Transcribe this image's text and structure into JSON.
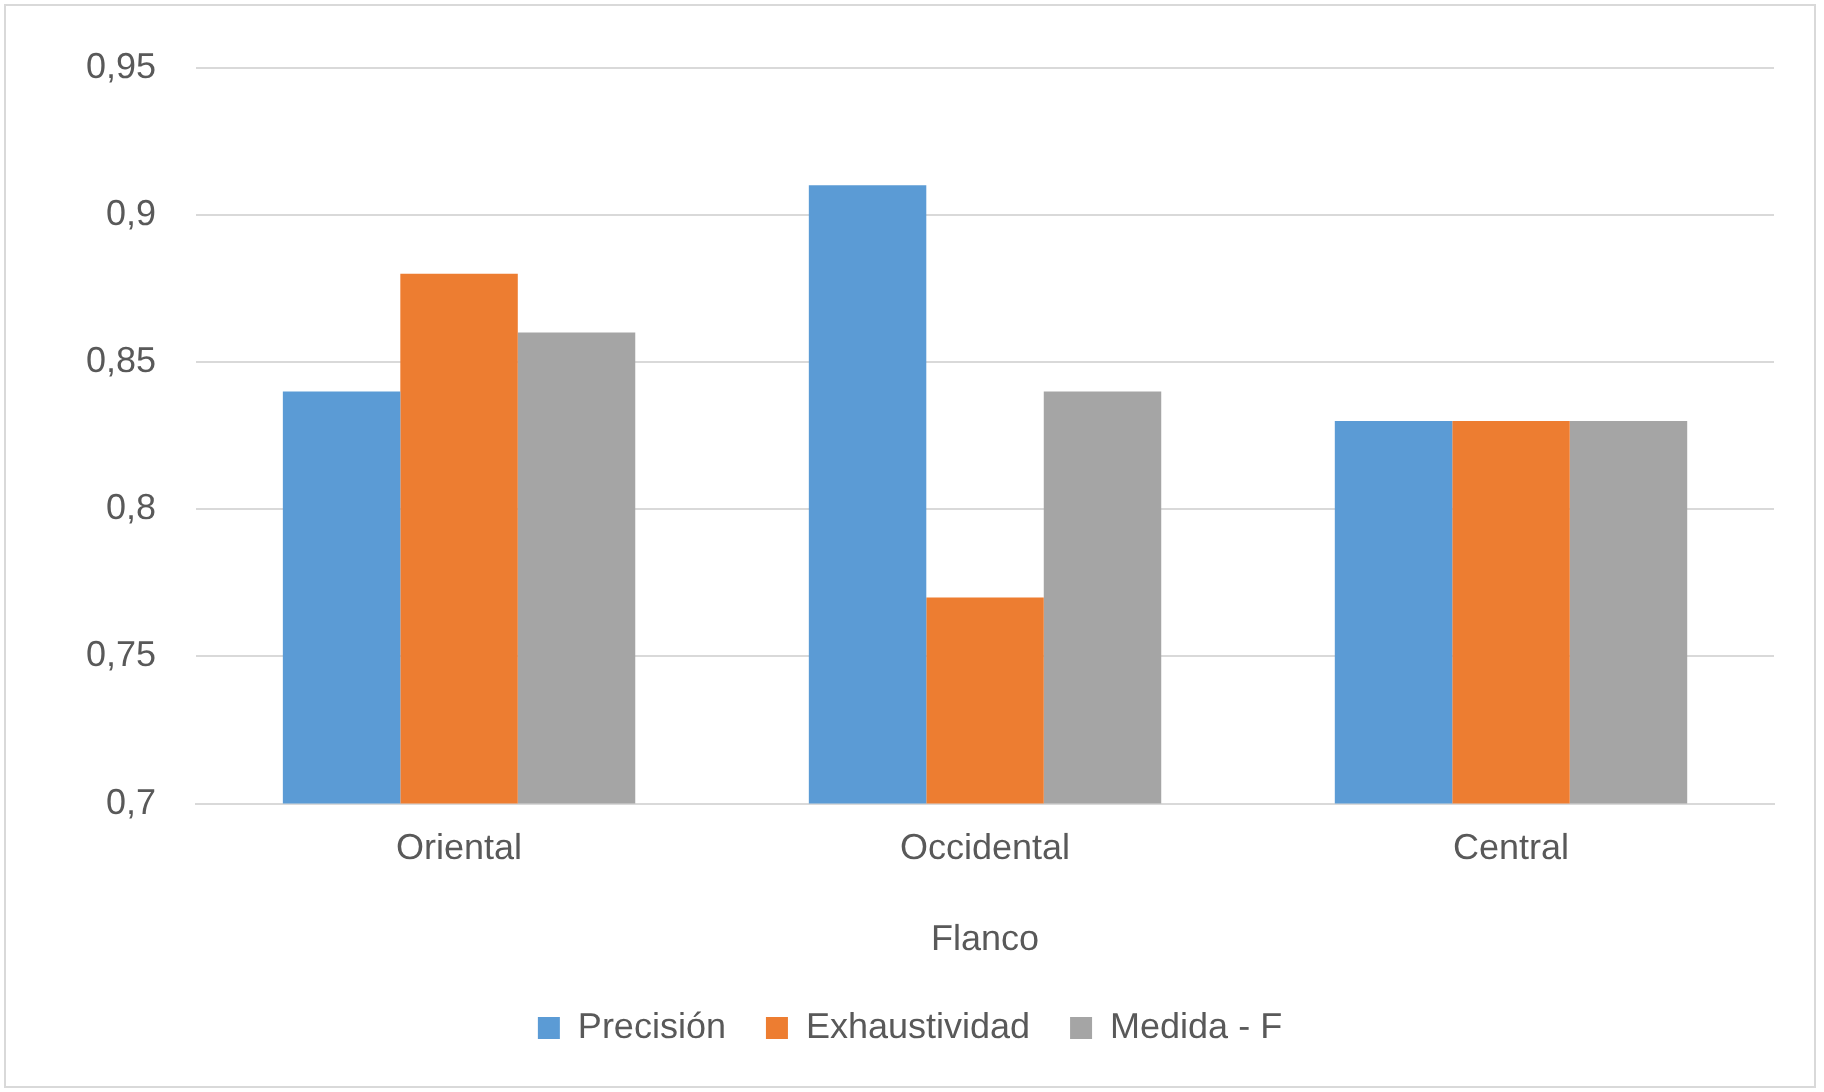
{
  "chart_data": {
    "type": "bar",
    "xlabel": "Flanco",
    "categories": [
      "Oriental",
      "Occidental",
      "Central"
    ],
    "series": [
      {
        "name": "Precisión",
        "color": "#5b9bd5",
        "values": [
          0.84,
          0.91,
          0.83
        ]
      },
      {
        "name": "Exhaustividad",
        "color": "#ed7d31",
        "values": [
          0.88,
          0.77,
          0.83
        ]
      },
      {
        "name": "Medida - F",
        "color": "#a5a5a5",
        "values": [
          0.86,
          0.84,
          0.83
        ]
      }
    ],
    "ylim": [
      0.7,
      0.95
    ],
    "yticks": [
      {
        "value": 0.7,
        "label": "0,7"
      },
      {
        "value": 0.75,
        "label": "0,75"
      },
      {
        "value": 0.8,
        "label": "0,8"
      },
      {
        "value": 0.85,
        "label": "0,85"
      },
      {
        "value": 0.9,
        "label": "0,9"
      },
      {
        "value": 0.95,
        "label": "0,95"
      }
    ],
    "grid": "y",
    "legend": "bottom"
  }
}
